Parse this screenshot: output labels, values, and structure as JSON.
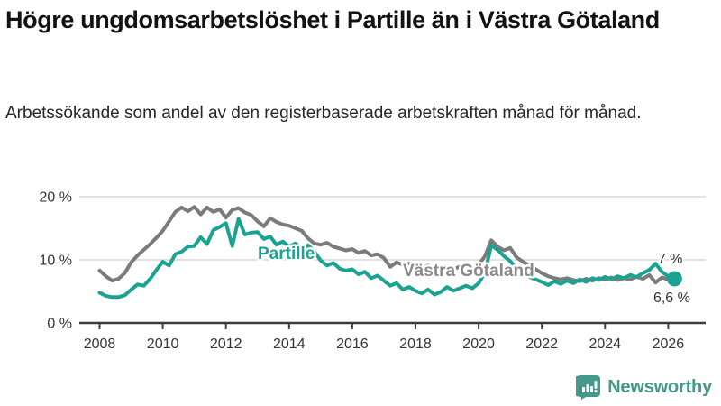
{
  "title": "Högre ungdomsarbetslöshet i Partille än i Västra Götaland",
  "subtitle": "Arbetssökande som andel av den registerbaserade arbetskraften månad för månad.",
  "branding": {
    "logo_text": "Newsworthy",
    "logo_color": "#46978c"
  },
  "chart_data": {
    "type": "line",
    "title": "Högre ungdomsarbetslöshet i Partille än i Västra Götaland",
    "xlabel": "",
    "ylabel": "",
    "x_start": 2008.0,
    "x_step_years": 0.2,
    "x_end": 2026.2,
    "ylim": [
      0,
      21.5
    ],
    "grid": "horizontal",
    "yticks": [
      {
        "value": 0,
        "label": "0 %"
      },
      {
        "value": 10,
        "label": "10 %"
      },
      {
        "value": 20,
        "label": "20 %"
      }
    ],
    "xticks": [
      2008,
      2010,
      2012,
      2014,
      2016,
      2018,
      2020,
      2022,
      2024,
      2026
    ],
    "xtick_labels": [
      "2008",
      "2010",
      "2012",
      "2014",
      "2016",
      "2018",
      "2020",
      "2022",
      "2024",
      "2026"
    ],
    "series": [
      {
        "name": "Västra Götaland",
        "color": "#7b7b7b",
        "label_color": "#8a8a8a",
        "end_label": "6,6 %",
        "end_value": 6.6,
        "values": [
          8.3,
          7.4,
          6.7,
          7.0,
          7.9,
          9.6,
          10.7,
          11.6,
          12.5,
          13.5,
          14.6,
          16.1,
          17.6,
          18.3,
          17.7,
          18.4,
          17.2,
          18.3,
          17.6,
          18.0,
          16.7,
          17.9,
          18.2,
          17.5,
          17.1,
          16.1,
          15.3,
          16.6,
          16.0,
          15.6,
          15.4,
          15.0,
          14.6,
          13.4,
          12.6,
          12.4,
          12.7,
          12.1,
          11.8,
          11.5,
          11.7,
          11.1,
          11.4,
          10.7,
          10.9,
          10.3,
          8.9,
          9.6,
          9.2,
          9.4,
          9.0,
          8.7,
          9.1,
          8.6,
          8.9,
          8.7,
          8.5,
          8.9,
          8.6,
          8.8,
          9.2,
          10.6,
          13.1,
          12.1,
          11.5,
          11.9,
          10.4,
          9.7,
          9.1,
          8.5,
          7.9,
          7.4,
          7.1,
          6.9,
          7.1,
          6.8,
          6.6,
          7.0,
          6.7,
          7.1,
          6.9,
          7.2,
          6.8,
          7.1,
          6.9,
          7.3,
          7.0,
          7.6,
          6.4,
          7.2,
          6.9,
          6.6
        ]
      },
      {
        "name": "Partille",
        "color": "#1ba293",
        "label_color": "#1ba293",
        "end_label": "7 %",
        "end_value": 7.0,
        "end_dot": true,
        "values": [
          4.8,
          4.3,
          4.1,
          4.1,
          4.4,
          5.3,
          6.1,
          5.9,
          7.0,
          8.4,
          9.7,
          9.1,
          10.9,
          11.3,
          12.1,
          12.2,
          13.6,
          12.5,
          14.7,
          15.2,
          15.8,
          12.2,
          16.5,
          14.0,
          14.3,
          14.4,
          13.3,
          13.7,
          12.4,
          12.9,
          12.1,
          12.6,
          11.8,
          12.3,
          11.3,
          9.9,
          9.1,
          9.5,
          8.6,
          8.3,
          8.5,
          7.7,
          8.1,
          7.1,
          7.5,
          6.7,
          5.9,
          6.3,
          5.3,
          5.7,
          5.1,
          4.7,
          5.3,
          4.5,
          4.9,
          5.7,
          5.1,
          5.5,
          5.9,
          5.5,
          6.3,
          8.0,
          12.3,
          11.6,
          10.6,
          9.8,
          8.6,
          7.8,
          7.3,
          6.9,
          6.5,
          6.0,
          6.6,
          6.2,
          6.7,
          6.3,
          6.9,
          6.5,
          7.1,
          6.8,
          7.3,
          6.9,
          7.4,
          7.1,
          7.6,
          7.3,
          7.9,
          8.4,
          9.4,
          8.1,
          7.4,
          7.0
        ]
      }
    ],
    "colors": {
      "grid": "#d8d8d8",
      "axis": "#3c3c3c",
      "tick_text": "#333333",
      "annotation_text": "#333333"
    }
  }
}
